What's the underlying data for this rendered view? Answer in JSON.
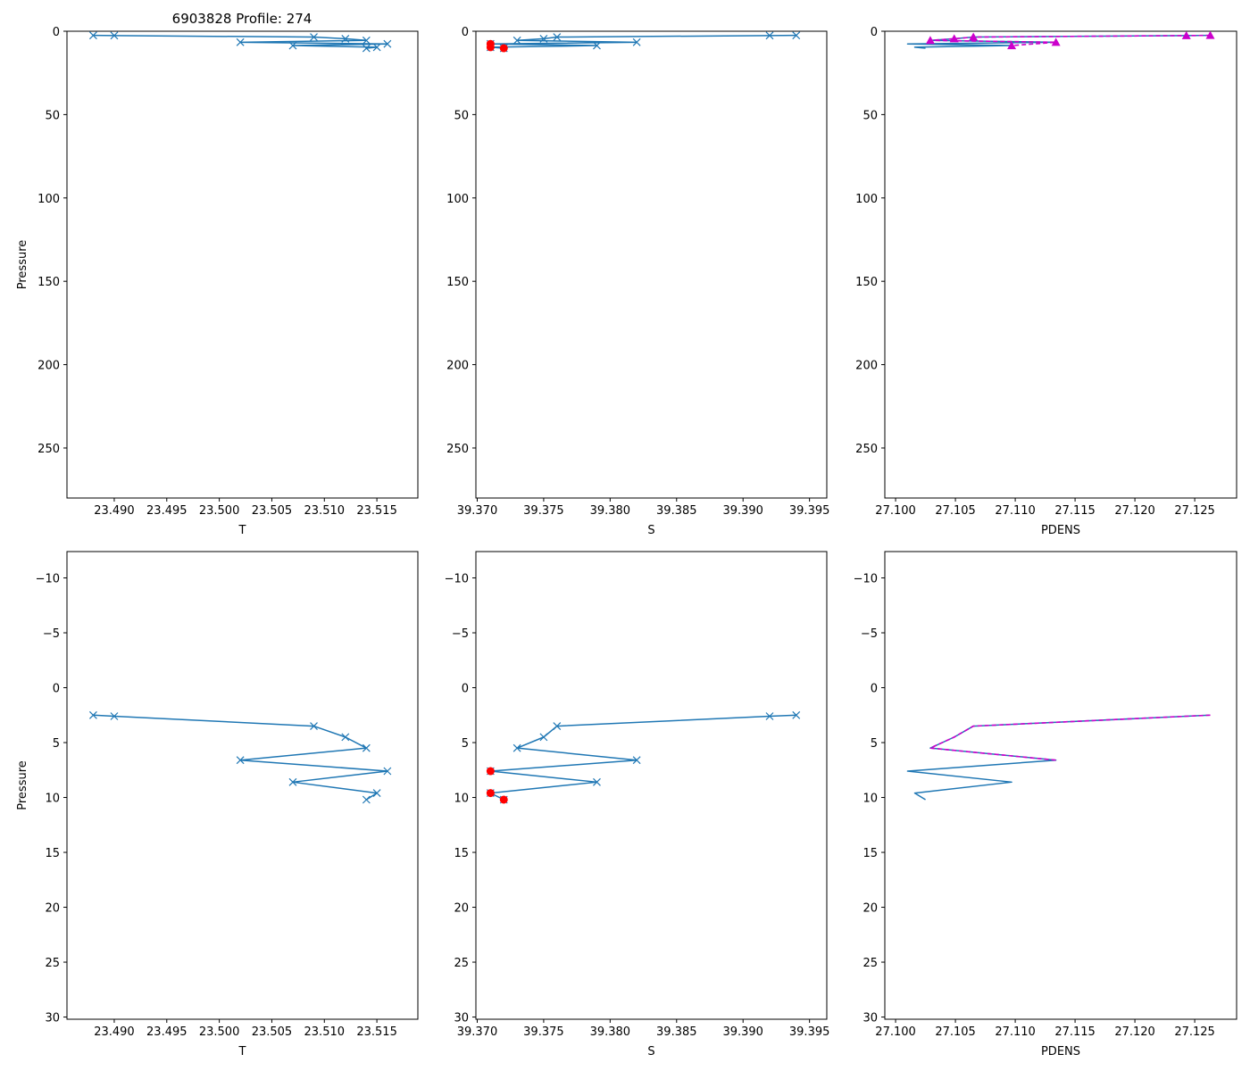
{
  "figure_title": "6903828 Profile: 274",
  "colors": {
    "line": "#1f77b4",
    "flag": "#ff0000",
    "density_flag": "#cc00cc",
    "axes": "#000000"
  },
  "chart_data": [
    {
      "id": "temp_full",
      "type": "line",
      "xlabel": "T",
      "ylabel": "Pressure",
      "xlim": [
        23.4855,
        23.5189
      ],
      "ylim": [
        280,
        0
      ],
      "xticks": [
        "23.490",
        "23.495",
        "23.500",
        "23.505",
        "23.510",
        "23.515"
      ],
      "yticks": [
        "0",
        "50",
        "100",
        "150",
        "200",
        "250"
      ],
      "series": [
        {
          "name": "T",
          "marker": "x",
          "x": [
            23.488,
            23.49,
            23.509,
            23.512,
            23.514,
            23.502,
            23.516,
            23.507,
            23.515,
            23.514
          ],
          "y": [
            2.5,
            2.6,
            3.5,
            4.5,
            5.5,
            6.6,
            7.6,
            8.6,
            9.6,
            10.2
          ]
        }
      ]
    },
    {
      "id": "sal_full",
      "type": "line",
      "xlabel": "S",
      "ylabel": "",
      "xlim": [
        39.3699,
        39.3963
      ],
      "ylim": [
        280,
        0
      ],
      "xticks": [
        "39.370",
        "39.375",
        "39.380",
        "39.385",
        "39.390",
        "39.395"
      ],
      "yticks": [
        "0",
        "50",
        "100",
        "150",
        "200",
        "250"
      ],
      "series": [
        {
          "name": "S",
          "marker": "x",
          "x": [
            39.394,
            39.392,
            39.376,
            39.375,
            39.373,
            39.382,
            39.371,
            39.379,
            39.371,
            39.372
          ],
          "y": [
            2.5,
            2.6,
            3.5,
            4.5,
            5.5,
            6.6,
            7.6,
            8.6,
            9.6,
            10.2
          ]
        }
      ],
      "flagged": {
        "name": "flagged",
        "marker": "o",
        "x": [
          39.371,
          39.371,
          39.372
        ],
        "y": [
          7.6,
          9.6,
          10.2
        ]
      }
    },
    {
      "id": "dens_full",
      "type": "line",
      "xlabel": "PDENS",
      "ylabel": "",
      "xlim": [
        27.0991,
        27.1285
      ],
      "ylim": [
        280,
        0
      ],
      "xticks": [
        "27.100",
        "27.105",
        "27.110",
        "27.115",
        "27.120",
        "27.125"
      ],
      "yticks": [
        "0",
        "50",
        "100",
        "150",
        "200",
        "250"
      ],
      "series": [
        {
          "name": "PDENS",
          "x": [
            27.1263,
            27.1243,
            27.1065,
            27.1049,
            27.1029,
            27.1134,
            27.101,
            27.1097,
            27.1016,
            27.1025
          ],
          "y": [
            2.5,
            2.6,
            3.5,
            4.5,
            5.5,
            6.6,
            7.6,
            8.6,
            9.6,
            10.2
          ]
        }
      ],
      "flag_series": {
        "name": "PDENS flagged",
        "marker": "triangle",
        "dashed": true,
        "x": [
          27.1263,
          27.1243,
          27.1065,
          27.1049,
          27.1029,
          27.1134,
          27.1097
        ],
        "y": [
          2.5,
          2.6,
          3.5,
          4.5,
          5.5,
          6.6,
          8.6
        ]
      }
    },
    {
      "id": "temp_zoom",
      "type": "line",
      "xlabel": "T",
      "ylabel": "Pressure",
      "xlim": [
        23.4855,
        23.5189
      ],
      "ylim": [
        30.2,
        -12.4
      ],
      "xticks": [
        "23.490",
        "23.495",
        "23.500",
        "23.505",
        "23.510",
        "23.515"
      ],
      "yticks": [
        "−10",
        "−5",
        "0",
        "5",
        "10",
        "15",
        "20",
        "25",
        "30"
      ],
      "series": [
        {
          "name": "T",
          "marker": "x",
          "x": [
            23.488,
            23.49,
            23.509,
            23.512,
            23.514,
            23.502,
            23.516,
            23.507,
            23.515,
            23.514
          ],
          "y": [
            2.5,
            2.6,
            3.5,
            4.5,
            5.5,
            6.6,
            7.6,
            8.6,
            9.6,
            10.2
          ]
        }
      ]
    },
    {
      "id": "sal_zoom",
      "type": "line",
      "xlabel": "S",
      "ylabel": "",
      "xlim": [
        39.3699,
        39.3963
      ],
      "ylim": [
        30.2,
        -12.4
      ],
      "xticks": [
        "39.370",
        "39.375",
        "39.380",
        "39.385",
        "39.390",
        "39.395"
      ],
      "yticks": [
        "−10",
        "−5",
        "0",
        "5",
        "10",
        "15",
        "20",
        "25",
        "30"
      ],
      "series": [
        {
          "name": "S",
          "marker": "x",
          "x": [
            39.394,
            39.392,
            39.376,
            39.375,
            39.373,
            39.382,
            39.371,
            39.379,
            39.371,
            39.372
          ],
          "y": [
            2.5,
            2.6,
            3.5,
            4.5,
            5.5,
            6.6,
            7.6,
            8.6,
            9.6,
            10.2
          ]
        }
      ],
      "flagged": {
        "name": "flagged",
        "marker": "o",
        "x": [
          39.371,
          39.371,
          39.372
        ],
        "y": [
          7.6,
          9.6,
          10.2
        ]
      }
    },
    {
      "id": "dens_zoom",
      "type": "line",
      "xlabel": "PDENS",
      "ylabel": "",
      "xlim": [
        27.0991,
        27.1285
      ],
      "ylim": [
        30.2,
        -12.4
      ],
      "xticks": [
        "27.100",
        "27.105",
        "27.110",
        "27.115",
        "27.120",
        "27.125"
      ],
      "yticks": [
        "−10",
        "−5",
        "0",
        "5",
        "10",
        "15",
        "20",
        "25",
        "30"
      ],
      "series": [
        {
          "name": "PDENS",
          "x": [
            27.1263,
            27.1243,
            27.1065,
            27.1049,
            27.1029,
            27.1134,
            27.101,
            27.1097,
            27.1016,
            27.1025
          ],
          "y": [
            2.5,
            2.6,
            3.5,
            4.5,
            5.5,
            6.6,
            7.6,
            8.6,
            9.6,
            10.2
          ]
        }
      ],
      "flag_series": {
        "name": "PDENS flagged",
        "dashed": true,
        "x": [
          27.1263,
          27.1243,
          27.1065,
          27.1049,
          27.1029,
          27.1134
        ],
        "y": [
          2.5,
          2.6,
          3.5,
          4.5,
          5.5,
          6.6
        ]
      }
    }
  ]
}
